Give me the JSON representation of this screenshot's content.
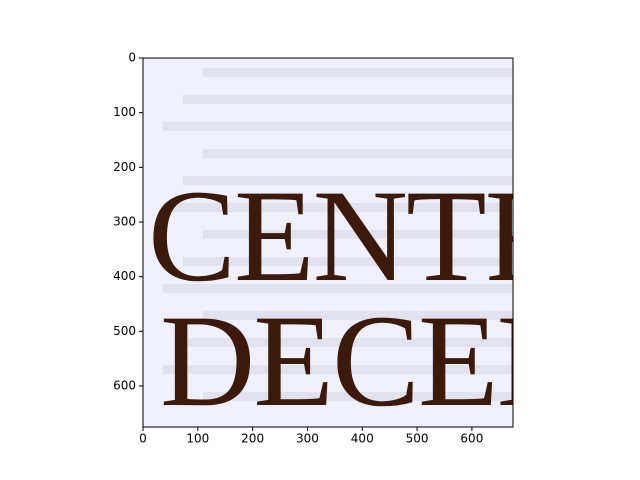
{
  "chart_data": {
    "type": "image",
    "image_text": [
      "CENTRA",
      "DECEN"
    ],
    "background": "#eff0fa",
    "xlim": [
      0,
      675
    ],
    "ylim": [
      675,
      0
    ],
    "xticks": [
      0,
      100,
      200,
      300,
      400,
      500,
      600
    ],
    "yticks": [
      0,
      100,
      200,
      300,
      400,
      500,
      600
    ]
  }
}
